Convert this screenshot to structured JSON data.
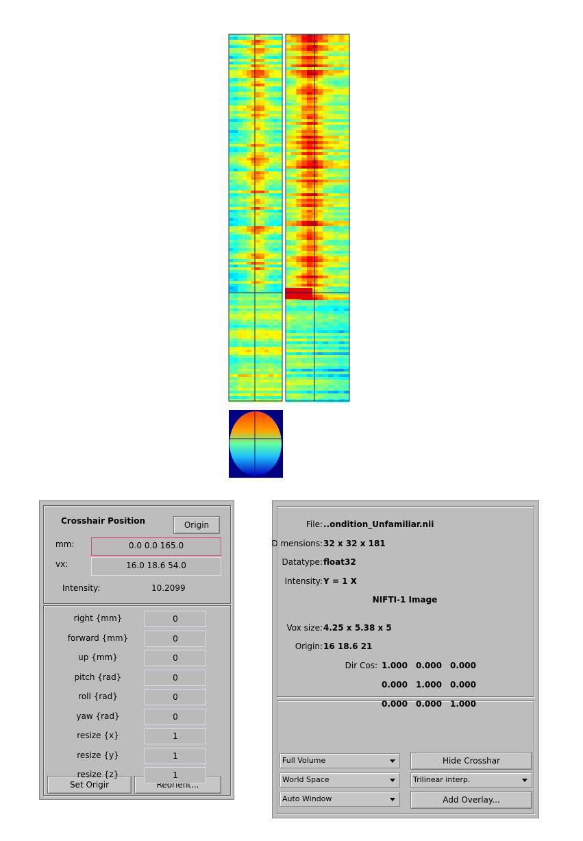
{
  "crosshair": {
    "title": "Crosshair Position",
    "origin_button": "Origin",
    "mm_label": "mm:",
    "mm_value": "0.0 0.0 165.0",
    "vx_label": "vx:",
    "vx_value": "16.0 18.6 54.0",
    "intensity_label": "Intensity:",
    "intensity_value": "10.2099"
  },
  "reorient": {
    "rows": [
      {
        "label": "right {mm}",
        "value": "0"
      },
      {
        "label": "forward {mm}",
        "value": "0"
      },
      {
        "label": "up {mm}",
        "value": "0"
      },
      {
        "label": "pitch {rad}",
        "value": "0"
      },
      {
        "label": "roll {rad}",
        "value": "0"
      },
      {
        "label": "yaw {rad}",
        "value": "0"
      },
      {
        "label": "resize {x}",
        "value": "1"
      },
      {
        "label": "resize {y}",
        "value": "1"
      },
      {
        "label": "resize {z}",
        "value": "1"
      }
    ],
    "set_origin_button": "Set Origir",
    "reorient_button": "Reorient..."
  },
  "info": {
    "rows": [
      {
        "label": "File:",
        "value": "..ondition_Unfamiliar.nii"
      },
      {
        "label": "D mensions:",
        "value": "32 x 32 x 181"
      },
      {
        "label": "Datatype:",
        "value": "float32"
      },
      {
        "label": "Intensity:",
        "value": "Y = 1 X"
      }
    ],
    "format": "NIFTI-1 Image",
    "rows2": [
      {
        "label": "Vox size:",
        "value": "4.25 x 5.38 x 5"
      },
      {
        "label": "Origin:",
        "value": "16 18.6 21"
      }
    ],
    "dir_cos_label": "Dir Cos:",
    "dir_cos": [
      [
        "1.000",
        "0.000",
        "0.000"
      ],
      [
        "0.000",
        "1.000",
        "0.000"
      ],
      [
        "0.000",
        "0.000",
        "1.000"
      ]
    ]
  },
  "controls": {
    "dropdowns": [
      "Full Volume",
      "World Space",
      "Auto Window"
    ],
    "hide_button": "Hide Crosshar",
    "interp": "Trilinear interp.",
    "overlay_button": "Add Overlay..."
  }
}
